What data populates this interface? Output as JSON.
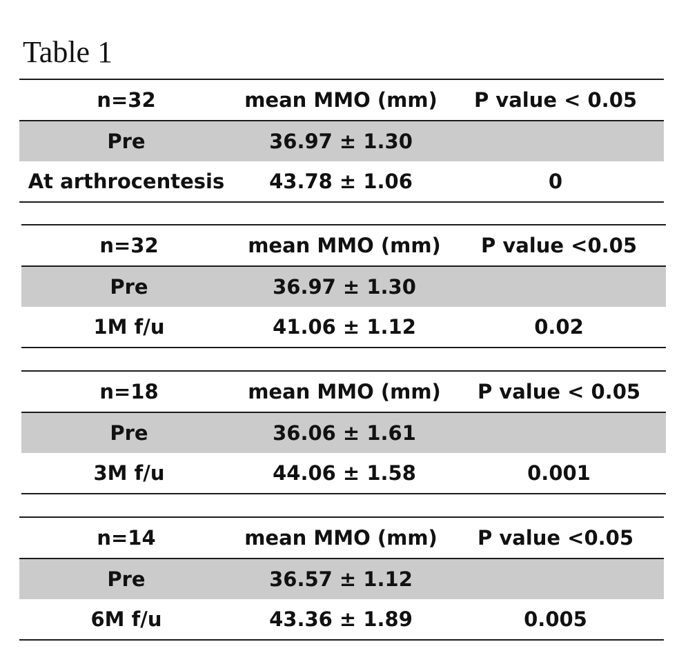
{
  "title": "Table 1",
  "tables": [
    {
      "header": {
        "n": "n=32",
        "measure": "mean MMO (mm)",
        "p": "P value < 0.05"
      },
      "rows": [
        {
          "label": "Pre",
          "value": "36.97 ± 1.30",
          "p": ""
        },
        {
          "label": "At arthrocentesis",
          "value": "43.78 ± 1.06",
          "p": "0"
        }
      ]
    },
    {
      "header": {
        "n": "n=32",
        "measure": "mean MMO (mm)",
        "p": "P value <0.05"
      },
      "rows": [
        {
          "label": "Pre",
          "value": "36.97 ± 1.30",
          "p": ""
        },
        {
          "label": "1M f/u",
          "value": "41.06 ± 1.12",
          "p": "0.02"
        }
      ]
    },
    {
      "header": {
        "n": "n=18",
        "measure": "mean MMO (mm)",
        "p": "P value < 0.05"
      },
      "rows": [
        {
          "label": "Pre",
          "value": "36.06 ± 1.61",
          "p": ""
        },
        {
          "label": "3M f/u",
          "value": "44.06 ± 1.58",
          "p": "0.001"
        }
      ]
    },
    {
      "header": {
        "n": "n=14",
        "measure": "mean MMO (mm)",
        "p": "P value <0.05"
      },
      "rows": [
        {
          "label": "Pre",
          "value": "36.57 ± 1.12",
          "p": ""
        },
        {
          "label": "6M f/u",
          "value": "43.36 ± 1.89",
          "p": "0.005"
        }
      ]
    }
  ],
  "colors": {
    "shade": "#cbcbcb",
    "rule": "#1a1a1a",
    "text": "#111111"
  }
}
